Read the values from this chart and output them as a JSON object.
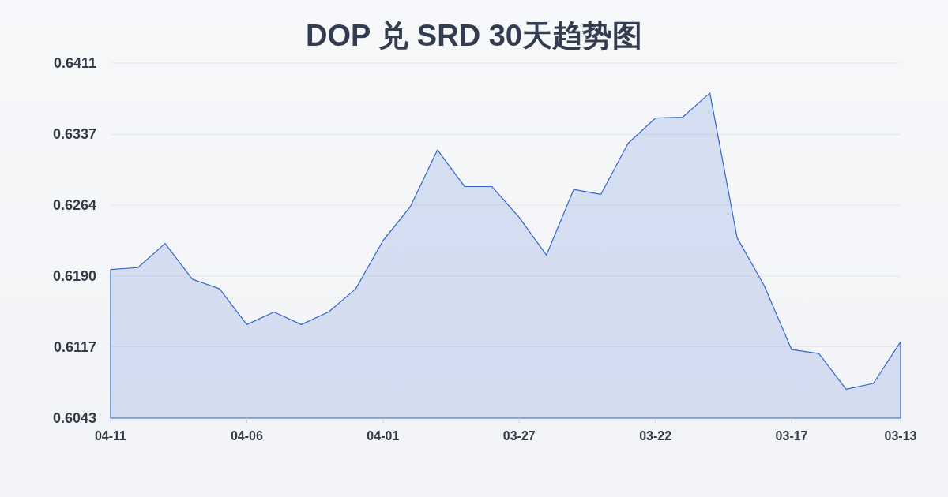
{
  "chart_data": {
    "type": "area",
    "title": "DOP 兑 SRD 30天趋势图",
    "categories": [
      "04-11",
      null,
      null,
      null,
      null,
      "04-06",
      null,
      null,
      null,
      null,
      "04-01",
      null,
      null,
      null,
      null,
      "03-27",
      null,
      null,
      null,
      null,
      "03-22",
      null,
      null,
      null,
      null,
      "03-17",
      null,
      null,
      null,
      "03-13"
    ],
    "values": [
      0.6197,
      0.6199,
      0.6224,
      0.6187,
      0.6177,
      0.614,
      0.6153,
      0.614,
      0.6153,
      0.6177,
      0.6227,
      0.6262,
      0.6321,
      0.6283,
      0.6283,
      0.6251,
      0.6212,
      0.628,
      0.6275,
      0.6328,
      0.6354,
      0.6355,
      0.638,
      0.623,
      0.618,
      0.6114,
      0.611,
      0.6073,
      0.6079,
      0.6122
    ],
    "color": "#3366cc",
    "ylim": [
      0.6043,
      0.6411
    ],
    "yticks": [
      0.6043,
      0.6117,
      {
        "value": 0.619,
        "label": "0.6190"
      },
      0.6264,
      0.6337,
      0.6411
    ],
    "grid": "y"
  }
}
